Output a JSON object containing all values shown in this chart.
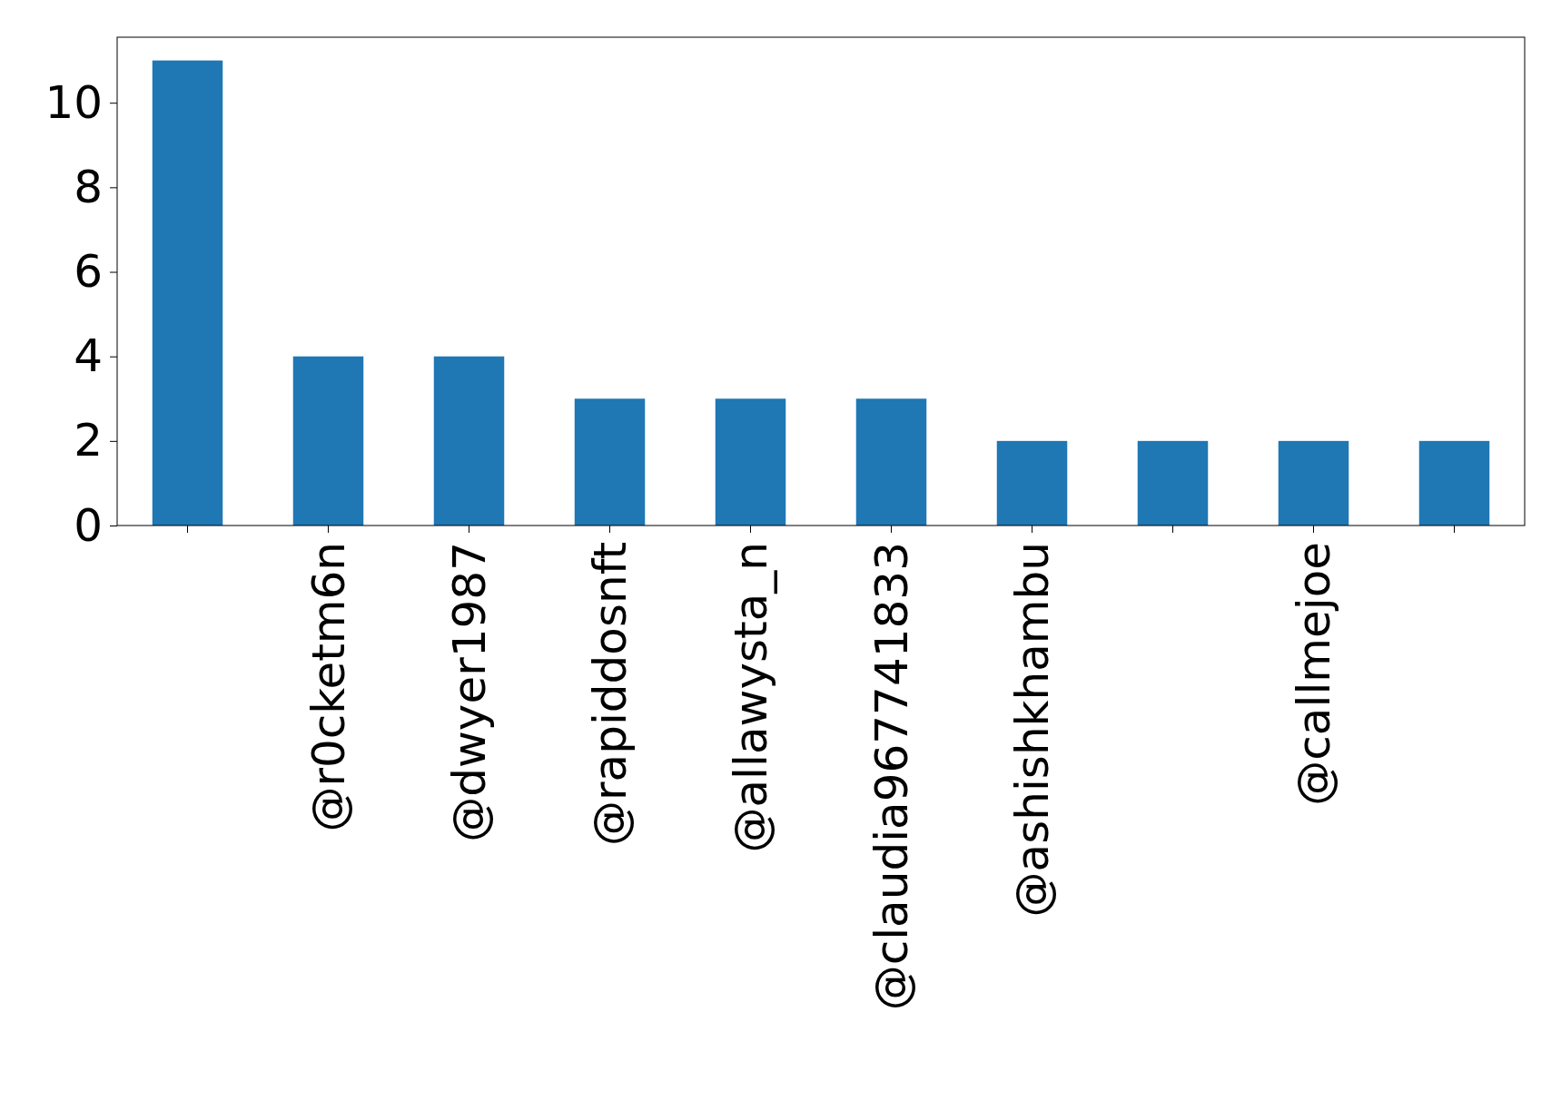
{
  "chart_data": {
    "type": "bar",
    "categories": [
      null,
      "@r0cketm6n",
      "@dwyer1987",
      "@rapiddosnft",
      "@allawysta_n",
      "@claudia967741833",
      "@ashishkhambu",
      null,
      "@callmejoe",
      null
    ],
    "values": [
      11,
      4,
      4,
      3,
      3,
      3,
      2,
      2,
      2,
      2
    ],
    "color": "#1f77b4",
    "ylim": [
      0,
      11.55
    ],
    "yticks": [
      0,
      2,
      4,
      6,
      8,
      10
    ]
  }
}
